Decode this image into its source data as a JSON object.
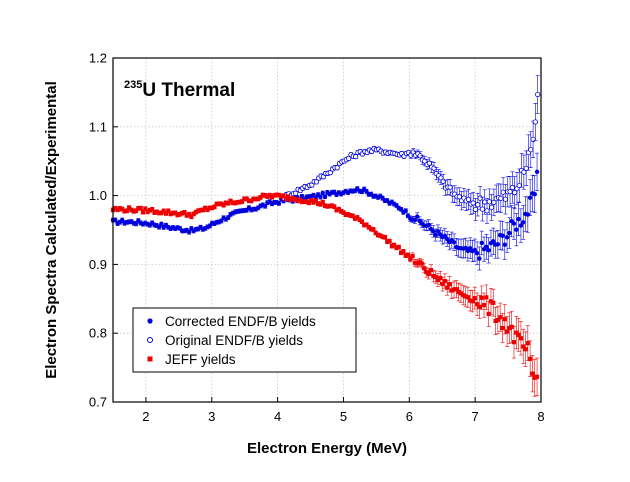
{
  "chart_data": {
    "type": "scatter",
    "title": "",
    "annotation": {
      "superscript": "235",
      "text": "U Thermal"
    },
    "xlabel": "Electron Energy (MeV)",
    "ylabel": "Electron Spectra Calculated/Experimental",
    "xlim": [
      1.5,
      8.0
    ],
    "ylim": [
      0.7,
      1.2
    ],
    "xticks": [
      2,
      3,
      4,
      5,
      6,
      7,
      8
    ],
    "yticks": [
      0.7,
      0.8,
      0.9,
      1.0,
      1.1,
      1.2
    ],
    "xtick_labels": [
      "2",
      "3",
      "4",
      "5",
      "6",
      "7",
      "8"
    ],
    "ytick_labels": [
      "0.7",
      "0.8",
      "0.9",
      "1.0",
      "1.1",
      "1.2"
    ],
    "grid": true,
    "legend_position": "bottom-left",
    "series": [
      {
        "name": "Corrected ENDF/B yields",
        "marker": "filled-circle",
        "color": "#0000dd",
        "points": [
          [
            1.5,
            0.962
          ],
          [
            1.7,
            0.962
          ],
          [
            1.9,
            0.961
          ],
          [
            2.1,
            0.959
          ],
          [
            2.3,
            0.955
          ],
          [
            2.5,
            0.952
          ],
          [
            2.7,
            0.949
          ],
          [
            2.9,
            0.953
          ],
          [
            3.1,
            0.963
          ],
          [
            3.3,
            0.972
          ],
          [
            3.5,
            0.978
          ],
          [
            3.7,
            0.983
          ],
          [
            3.9,
            0.989
          ],
          [
            4.1,
            0.993
          ],
          [
            4.3,
            0.995
          ],
          [
            4.5,
            0.998
          ],
          [
            4.7,
            1.001
          ],
          [
            4.9,
            1.004
          ],
          [
            5.1,
            1.008
          ],
          [
            5.25,
            1.009
          ],
          [
            5.4,
            1.004
          ],
          [
            5.55,
            0.997
          ],
          [
            5.7,
            0.99
          ],
          [
            5.85,
            0.983
          ],
          [
            6.0,
            0.972
          ],
          [
            6.2,
            0.96
          ],
          [
            6.4,
            0.947
          ],
          [
            6.6,
            0.934
          ],
          [
            6.8,
            0.921
          ],
          [
            7.0,
            0.918
          ],
          [
            7.2,
            0.924
          ],
          [
            7.35,
            0.932
          ],
          [
            7.5,
            0.945
          ],
          [
            7.6,
            0.958
          ],
          [
            7.7,
            0.966
          ],
          [
            7.8,
            0.978
          ],
          [
            7.9,
            1.0
          ],
          [
            7.97,
            1.04
          ]
        ]
      },
      {
        "name": "Original ENDF/B yields",
        "marker": "open-circle",
        "color": "#0000dd",
        "points": [
          [
            4.1,
            0.998
          ],
          [
            4.3,
            1.007
          ],
          [
            4.5,
            1.016
          ],
          [
            4.7,
            1.029
          ],
          [
            4.9,
            1.043
          ],
          [
            5.1,
            1.056
          ],
          [
            5.3,
            1.064
          ],
          [
            5.5,
            1.066
          ],
          [
            5.7,
            1.063
          ],
          [
            5.9,
            1.059
          ],
          [
            6.05,
            1.064
          ],
          [
            6.2,
            1.055
          ],
          [
            6.35,
            1.04
          ],
          [
            6.5,
            1.02
          ],
          [
            6.7,
            1.0
          ],
          [
            6.9,
            0.99
          ],
          [
            7.1,
            0.988
          ],
          [
            7.3,
            0.992
          ],
          [
            7.45,
            0.998
          ],
          [
            7.6,
            1.008
          ],
          [
            7.7,
            1.025
          ],
          [
            7.8,
            1.05
          ],
          [
            7.87,
            1.08
          ],
          [
            7.92,
            1.11
          ],
          [
            7.97,
            1.17
          ]
        ]
      },
      {
        "name": "JEFF yields",
        "marker": "filled-square",
        "color": "#ee0000",
        "points": [
          [
            1.5,
            0.98
          ],
          [
            1.7,
            0.98
          ],
          [
            1.9,
            0.979
          ],
          [
            2.1,
            0.978
          ],
          [
            2.3,
            0.976
          ],
          [
            2.5,
            0.974
          ],
          [
            2.7,
            0.972
          ],
          [
            2.9,
            0.98
          ],
          [
            3.1,
            0.986
          ],
          [
            3.3,
            0.99
          ],
          [
            3.5,
            0.993
          ],
          [
            3.7,
            0.997
          ],
          [
            3.9,
            1.0
          ],
          [
            4.1,
            0.998
          ],
          [
            4.3,
            0.995
          ],
          [
            4.5,
            0.992
          ],
          [
            4.7,
            0.988
          ],
          [
            4.9,
            0.98
          ],
          [
            5.1,
            0.971
          ],
          [
            5.3,
            0.961
          ],
          [
            5.5,
            0.947
          ],
          [
            5.7,
            0.932
          ],
          [
            5.9,
            0.918
          ],
          [
            6.1,
            0.904
          ],
          [
            6.3,
            0.889
          ],
          [
            6.5,
            0.874
          ],
          [
            6.7,
            0.862
          ],
          [
            6.9,
            0.853
          ],
          [
            7.1,
            0.845
          ],
          [
            7.25,
            0.835
          ],
          [
            7.4,
            0.82
          ],
          [
            7.5,
            0.81
          ],
          [
            7.6,
            0.795
          ],
          [
            7.7,
            0.782
          ],
          [
            7.8,
            0.774
          ],
          [
            7.88,
            0.725
          ],
          [
            7.95,
            0.74
          ]
        ]
      }
    ]
  }
}
